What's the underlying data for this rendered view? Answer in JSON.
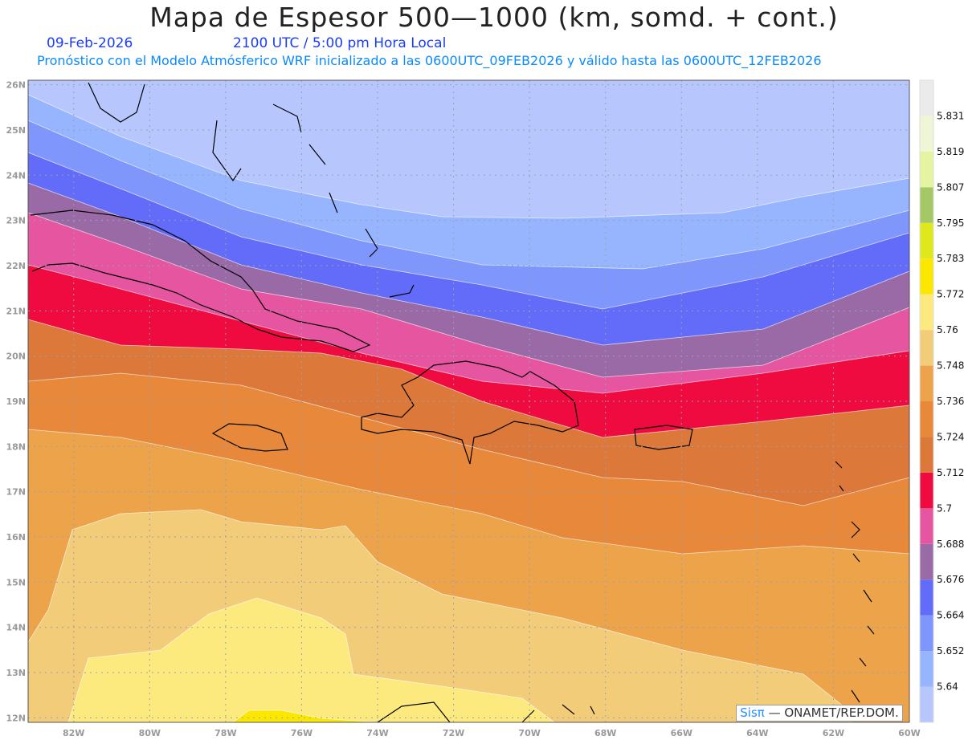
{
  "title": "Mapa de Espesor 500—1000 (km, somd. + cont.)",
  "date": "09-Feb-2026",
  "time": "2100 UTC / 5:00 pm Hora Local",
  "subtitle": "Pronóstico con el Modelo Atmósferico WRF inicializado a las 0600UTC_09FEB2026 y válido hasta las  0600UTC_12FEB2026",
  "footer": {
    "brand": "Sisπ",
    "text": " —  ONAMET/REP.DOM."
  },
  "axes": {
    "lon_ticks": [
      "82W",
      "80W",
      "78W",
      "76W",
      "74W",
      "72W",
      "70W",
      "68W",
      "66W",
      "64W",
      "62W",
      "60W"
    ],
    "lat_ticks": [
      "12N",
      "13N",
      "14N",
      "15N",
      "16N",
      "17N",
      "18N",
      "19N",
      "20N",
      "21N",
      "22N",
      "23N",
      "24N",
      "25N",
      "26N"
    ],
    "lon_range": [
      -83.2,
      -60
    ],
    "lat_range": [
      11.9,
      26.1
    ]
  },
  "colorbar": {
    "labels": [
      "5.64",
      "5.652",
      "5.664",
      "5.676",
      "5.688",
      "5.7",
      "5.712",
      "5.724",
      "5.736",
      "5.748",
      "5.76",
      "5.772",
      "5.783",
      "5.795",
      "5.807",
      "5.819",
      "5.831"
    ],
    "colors": [
      "#b7c7fe",
      "#97b4fe",
      "#7f97fc",
      "#636cf8",
      "#9a6aa6",
      "#e655a0",
      "#ef0a40",
      "#db783a",
      "#e8883a",
      "#eca34a",
      "#f3cc7a",
      "#fdea7f",
      "#fce700",
      "#dfe81a",
      "#a4c866",
      "#e4f4a0",
      "#eff6d6",
      "#ebebeb"
    ]
  }
}
